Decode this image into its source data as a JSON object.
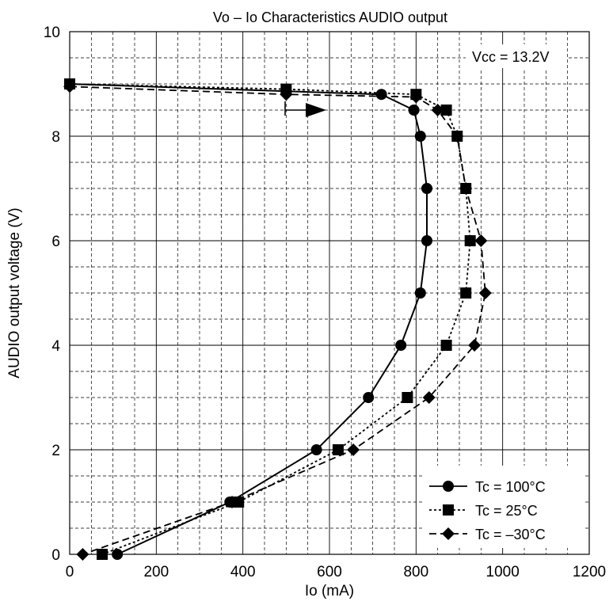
{
  "chart_data": {
    "type": "line",
    "title": "Vo – Io Characteristics   AUDIO output",
    "xlabel": "Io  (mA)",
    "ylabel": "AUDIO output voltage  (V)",
    "xlim": [
      0,
      1200
    ],
    "ylim": [
      0,
      10
    ],
    "x_ticks": [
      "0",
      "200",
      "400",
      "600",
      "800",
      "1000",
      "1200"
    ],
    "y_ticks": [
      "0",
      "2",
      "4",
      "6",
      "8",
      "10"
    ],
    "grid": "major solid, minor dashed",
    "annotation": "Vcc = 13.2V",
    "legend_position": "bottom-right",
    "series": [
      {
        "name": "Tc = 100°C",
        "line": "solid",
        "marker": "circle",
        "points": [
          [
            0,
            9.0
          ],
          [
            720,
            8.8
          ],
          [
            795,
            8.5
          ],
          [
            810,
            8.0
          ],
          [
            825,
            7.0
          ],
          [
            825,
            6.0
          ],
          [
            810,
            5.0
          ],
          [
            765,
            4.0
          ],
          [
            690,
            3.0
          ],
          [
            570,
            2.0
          ],
          [
            370,
            1.0
          ],
          [
            110,
            0.0
          ]
        ]
      },
      {
        "name": "Tc = 25°C",
        "line": "dotted",
        "marker": "square",
        "points": [
          [
            0,
            9.0
          ],
          [
            500,
            8.9
          ],
          [
            800,
            8.8
          ],
          [
            870,
            8.5
          ],
          [
            895,
            8.0
          ],
          [
            915,
            7.0
          ],
          [
            925,
            6.0
          ],
          [
            915,
            5.0
          ],
          [
            870,
            4.0
          ],
          [
            780,
            3.0
          ],
          [
            620,
            2.0
          ],
          [
            390,
            1.0
          ],
          [
            75,
            0.0
          ]
        ]
      },
      {
        "name": "Tc = –30°C",
        "line": "dashed",
        "marker": "diamond",
        "points": [
          [
            0,
            8.95
          ],
          [
            500,
            8.8
          ],
          [
            800,
            8.75
          ],
          [
            850,
            8.5
          ],
          [
            895,
            8.0
          ],
          [
            915,
            7.0
          ],
          [
            950,
            6.0
          ],
          [
            960,
            5.0
          ],
          [
            935,
            4.0
          ],
          [
            830,
            3.0
          ],
          [
            655,
            2.0
          ],
          [
            375,
            1.0
          ],
          [
            30,
            0.0
          ]
        ]
      }
    ]
  }
}
